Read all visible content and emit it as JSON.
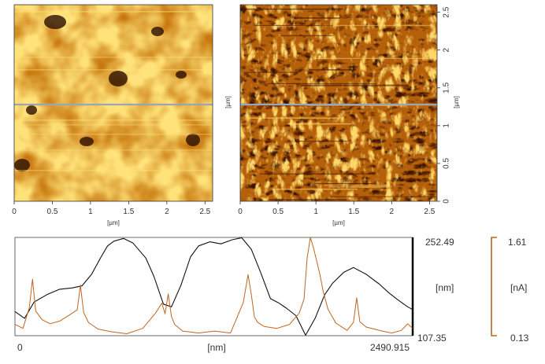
{
  "colors": {
    "topo_dark": "#2a0e00",
    "topo_mid": "#c8780e",
    "topo_light": "#ffe37a",
    "cur_dark": "#3d1200",
    "cur_mid": "#b5600a",
    "cur_light": "#ffd86a",
    "line_marker": "#9aa6b8",
    "height_profile": "#111111",
    "current_profile": "#c0651e"
  },
  "images": [
    {
      "id": "topography",
      "xlabel": "[µm]",
      "ylabel": "",
      "xticks": [
        "0",
        "0.5",
        "1",
        "1.5",
        "2",
        "2.5"
      ],
      "yticks": []
    },
    {
      "id": "current",
      "xlabel": "[µm]",
      "ylabel": "[µm]",
      "xticks": [
        "0",
        "0.5",
        "1",
        "1.5",
        "2",
        "2.5"
      ],
      "yticks": [
        "0",
        "0.5",
        "1",
        "1.5",
        "2",
        "2.5"
      ]
    }
  ],
  "profile": {
    "x_min_label": "0",
    "x_max_label": "2490.915",
    "x_unit": "[nm]",
    "height_max_label": "252.49",
    "height_min_label": "107.35",
    "height_unit": "[nm]",
    "current_max_label": "1.61",
    "current_min_label": "0.13",
    "current_unit": "[nA]"
  },
  "chart_data": {
    "type": "line",
    "xlabel": "[nm]",
    "xlim": [
      0,
      2490.915
    ],
    "series": [
      {
        "axis": "height",
        "unit": "[nm]",
        "ylim": [
          107.35,
          252.49
        ],
        "x": [
          0,
          60,
          120,
          200,
          280,
          360,
          420,
          480,
          540,
          580,
          620,
          680,
          740,
          820,
          870,
          930,
          980,
          1040,
          1100,
          1150,
          1220,
          1290,
          1360,
          1420,
          1480,
          1540,
          1600,
          1650,
          1700,
          1760,
          1820,
          1880,
          1940,
          1990,
          2060,
          2120,
          2200,
          2280,
          2340,
          2400,
          2460,
          2490
        ],
        "y": [
          143,
          133,
          157,
          168,
          176,
          178,
          181,
          198,
          224,
          240,
          247,
          251,
          244,
          222,
          195,
          154,
          150,
          182,
          224,
          240,
          246,
          243,
          249,
          252,
          235,
          200,
          162,
          156,
          148,
          137,
          108,
          133,
          168,
          185,
          201,
          208,
          198,
          184,
          171,
          160,
          150,
          146
        ]
      },
      {
        "axis": "current",
        "unit": "[nA]",
        "ylim": [
          0.13,
          1.61
        ],
        "x": [
          0,
          50,
          90,
          110,
          130,
          170,
          220,
          280,
          340,
          390,
          410,
          430,
          460,
          520,
          600,
          700,
          800,
          880,
          920,
          940,
          960,
          980,
          1000,
          1050,
          1150,
          1250,
          1350,
          1430,
          1460,
          1480,
          1500,
          1520,
          1560,
          1640,
          1720,
          1780,
          1810,
          1830,
          1850,
          1870,
          1890,
          1910,
          1930,
          1960,
          2010,
          2080,
          2120,
          2140,
          2160,
          2200,
          2300,
          2360,
          2420,
          2460,
          2490
        ],
        "y": [
          0.3,
          0.24,
          0.55,
          0.98,
          0.5,
          0.37,
          0.31,
          0.35,
          0.44,
          0.52,
          0.89,
          0.48,
          0.33,
          0.23,
          0.19,
          0.16,
          0.24,
          0.47,
          0.62,
          0.46,
          0.76,
          0.42,
          0.3,
          0.2,
          0.17,
          0.2,
          0.17,
          0.63,
          1.05,
          0.75,
          0.41,
          0.33,
          0.27,
          0.24,
          0.3,
          0.47,
          0.68,
          1.3,
          1.61,
          1.45,
          1.25,
          1.05,
          0.8,
          0.53,
          0.32,
          0.21,
          0.33,
          0.7,
          0.34,
          0.26,
          0.2,
          0.17,
          0.21,
          0.31,
          0.24
        ]
      }
    ]
  }
}
